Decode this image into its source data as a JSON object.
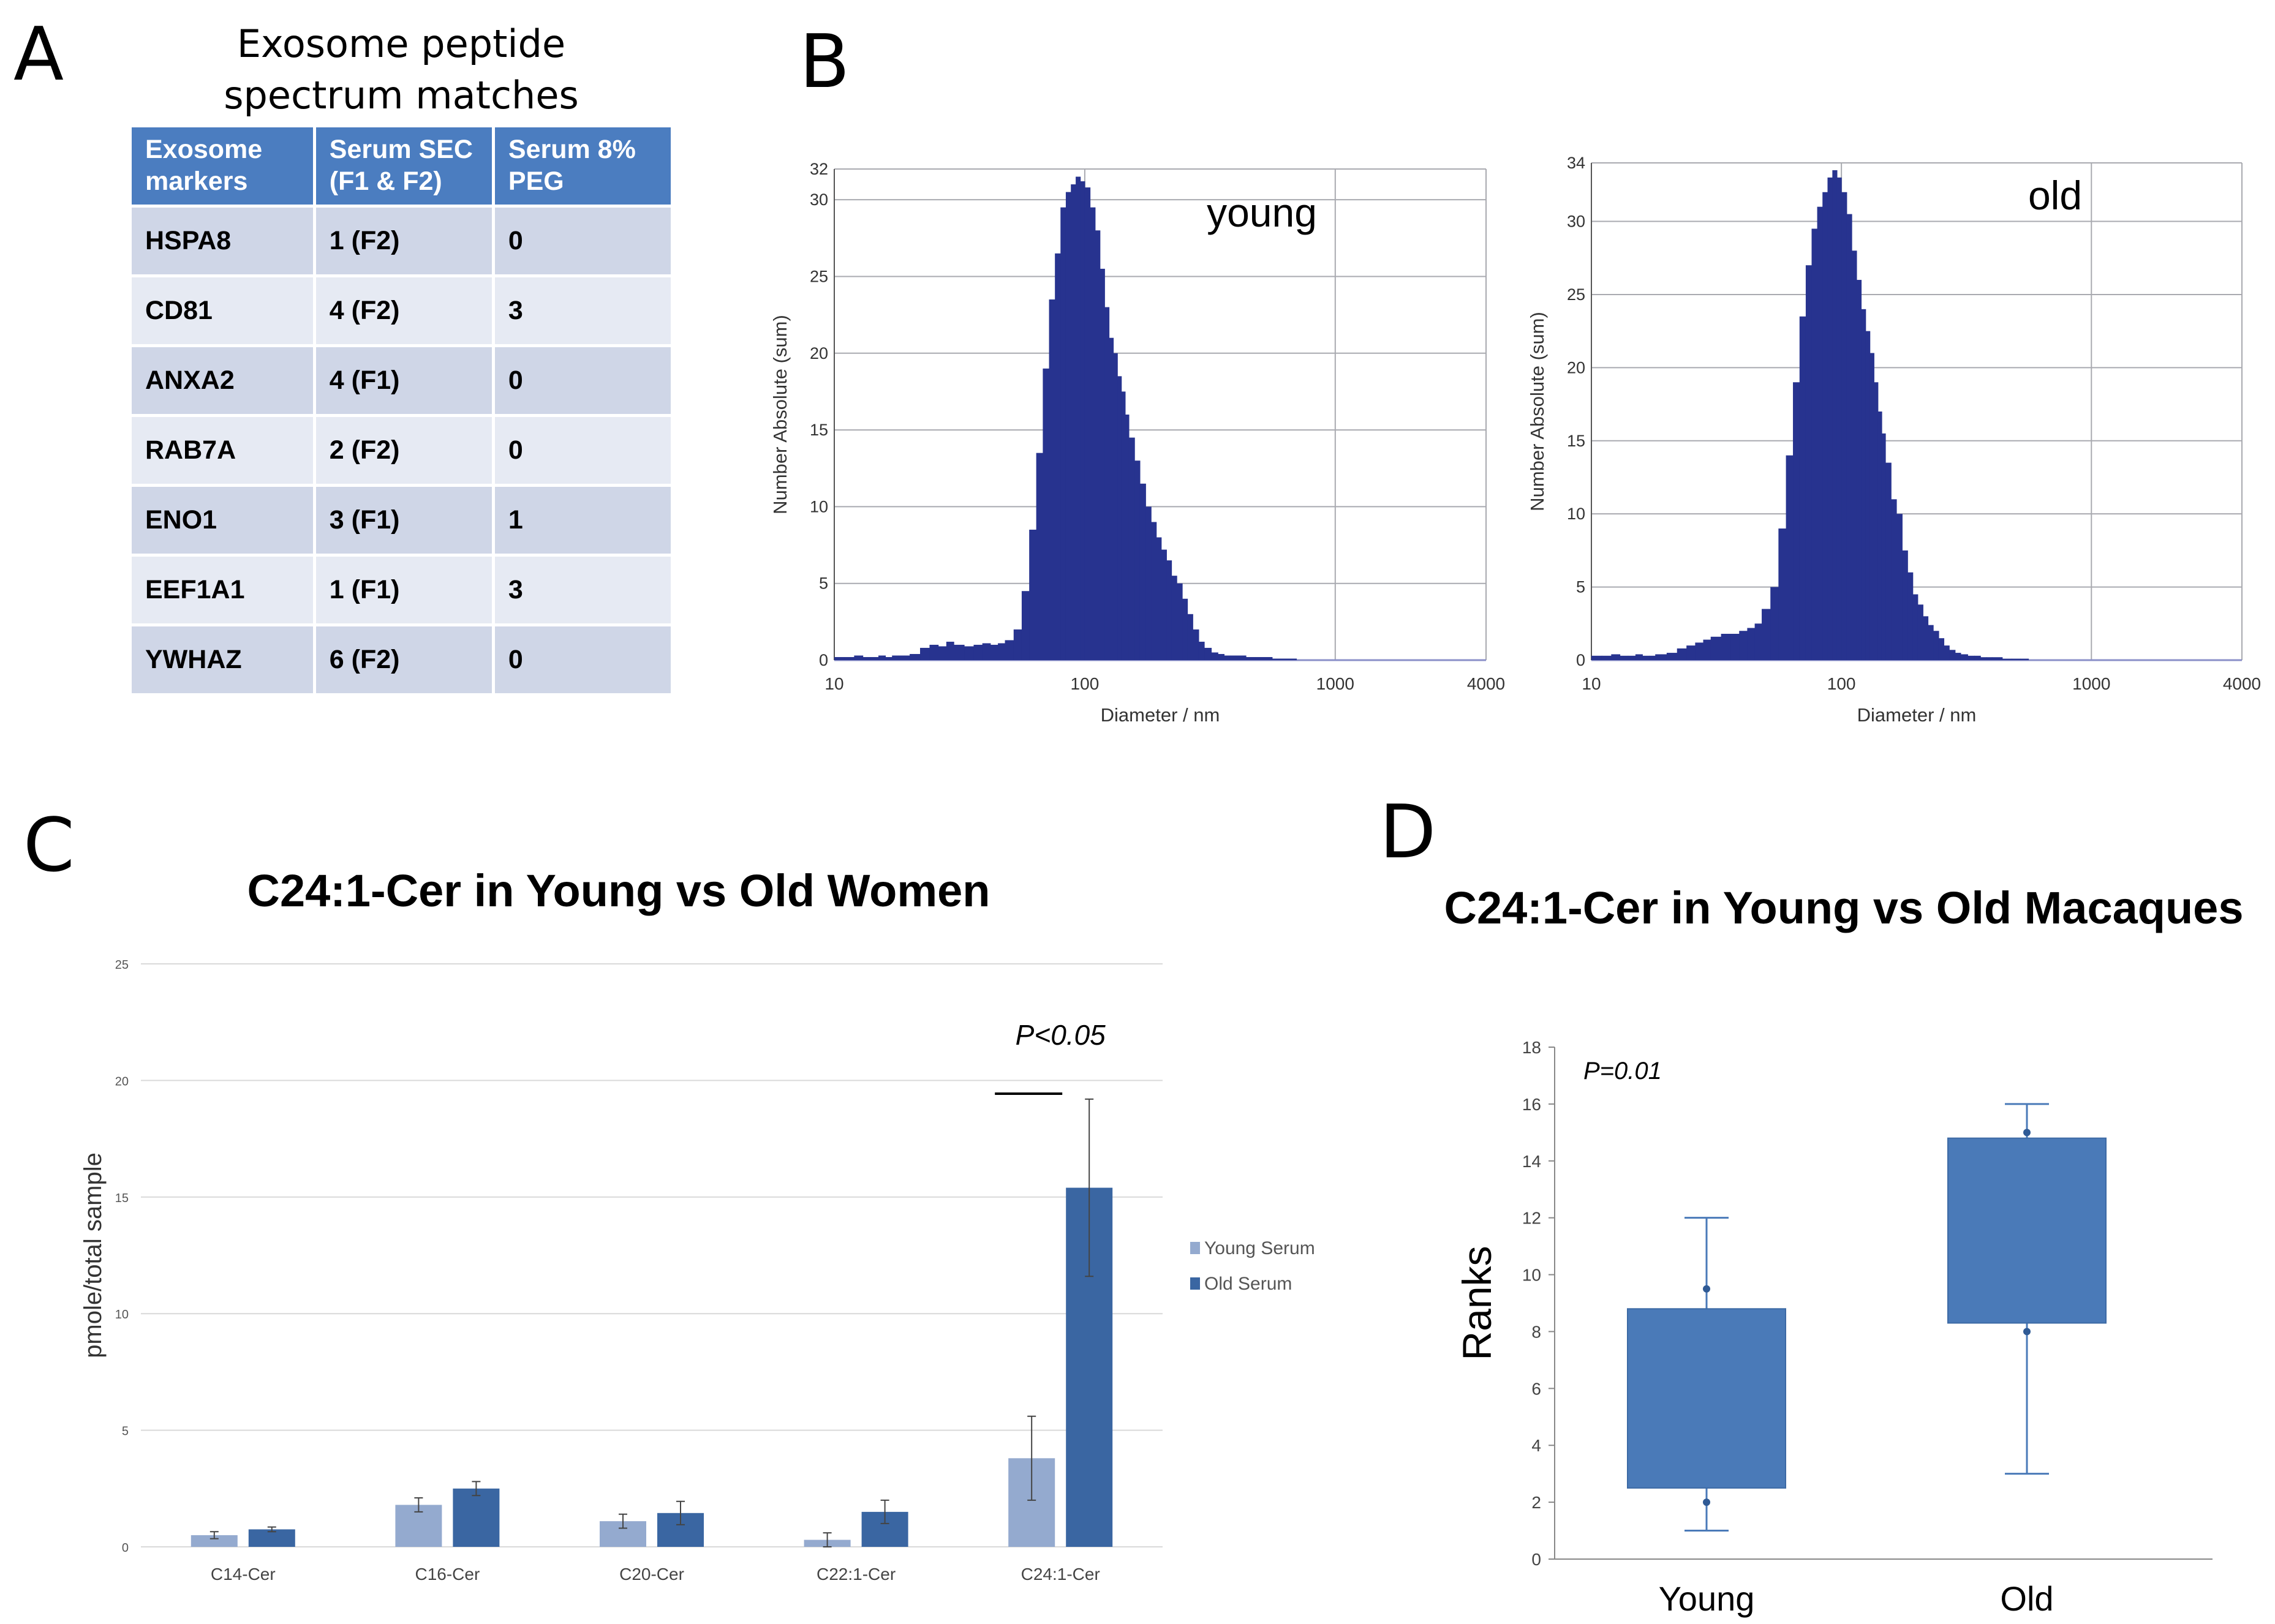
{
  "panels": {
    "a": "A",
    "b": "B",
    "c": "C",
    "d": "D"
  },
  "table": {
    "title_line1": "Exosome peptide",
    "title_line2": "spectrum matches",
    "headers": [
      {
        "line1": "Exosome",
        "line2": "markers"
      },
      {
        "line1": "Serum SEC",
        "line2": "(F1 & F2)"
      },
      {
        "line1": "Serum 8%",
        "line2": "PEG"
      }
    ],
    "rows": [
      {
        "marker": "HSPA8",
        "sec": "1 (F2)",
        "peg": "0"
      },
      {
        "marker": "CD81",
        "sec": "4 (F2)",
        "peg": "3"
      },
      {
        "marker": "ANXA2",
        "sec": "4 (F1)",
        "peg": "0"
      },
      {
        "marker": "RAB7A",
        "sec": "2 (F2)",
        "peg": "0"
      },
      {
        "marker": "ENO1",
        "sec": "3 (F1)",
        "peg": "1"
      },
      {
        "marker": "EEF1A1",
        "sec": "1 (F1)",
        "peg": "3"
      },
      {
        "marker": "YWHAZ",
        "sec": "6 (F2)",
        "peg": "0"
      }
    ]
  },
  "chart_data": [
    {
      "id": "young",
      "type": "bar",
      "title": "young",
      "xlabel": "Diameter / nm",
      "ylabel": "Number Absolute (sum)",
      "xscale": "log",
      "xlim": [
        10,
        4000
      ],
      "ylim": [
        0,
        32
      ],
      "x_ticks": [
        "10",
        "100",
        "1000",
        "4000"
      ],
      "y_ticks": [
        0,
        5,
        10,
        15,
        20,
        25,
        30,
        32
      ],
      "color": "#27338f",
      "x": [
        10,
        11,
        12,
        13,
        14,
        15,
        16,
        17,
        18,
        19,
        20,
        22,
        24,
        26,
        28,
        30,
        33,
        36,
        39,
        42,
        45,
        48,
        52,
        56,
        60,
        64,
        68,
        72,
        76,
        80,
        84,
        88,
        92,
        96,
        100,
        105,
        110,
        115,
        120,
        125,
        130,
        135,
        140,
        145,
        150,
        158,
        166,
        175,
        184,
        193,
        202,
        212,
        222,
        233,
        245,
        257,
        270,
        285,
        300,
        320,
        340,
        360,
        380,
        400,
        440,
        480,
        520,
        560,
        600,
        700
      ],
      "values": [
        0.2,
        0.2,
        0.3,
        0.2,
        0.2,
        0.3,
        0.2,
        0.3,
        0.3,
        0.3,
        0.4,
        0.8,
        1.0,
        0.9,
        1.2,
        1.0,
        0.9,
        1.0,
        1.1,
        1.0,
        1.1,
        1.3,
        2.0,
        4.5,
        8.5,
        13.5,
        19.0,
        23.5,
        26.5,
        29.5,
        30.5,
        31.0,
        31.5,
        31.2,
        30.8,
        29.5,
        28.0,
        25.5,
        23.0,
        21.0,
        20.0,
        18.5,
        17.5,
        16.0,
        14.5,
        13.0,
        11.5,
        10.0,
        9.0,
        8.0,
        7.2,
        6.5,
        5.5,
        5.0,
        4.0,
        3.0,
        2.0,
        1.2,
        0.8,
        0.5,
        0.4,
        0.3,
        0.3,
        0.3,
        0.2,
        0.2,
        0.2,
        0.1,
        0.1,
        0.0
      ]
    },
    {
      "id": "old",
      "type": "bar",
      "title": "old",
      "xlabel": "Diameter / nm",
      "ylabel": "Number Absolute (sum)",
      "xscale": "log",
      "xlim": [
        10,
        4000
      ],
      "ylim": [
        0,
        34
      ],
      "x_ticks": [
        "10",
        "100",
        "1000",
        "4000"
      ],
      "y_ticks": [
        0,
        5,
        10,
        15,
        20,
        25,
        30,
        34
      ],
      "color": "#27338f",
      "x": [
        10,
        11,
        12,
        13,
        14,
        15,
        16,
        17,
        18,
        19,
        20,
        22,
        24,
        26,
        28,
        30,
        33,
        36,
        39,
        42,
        45,
        48,
        52,
        56,
        60,
        64,
        68,
        72,
        76,
        80,
        84,
        88,
        92,
        96,
        100,
        105,
        110,
        115,
        120,
        125,
        130,
        135,
        140,
        145,
        150,
        158,
        166,
        175,
        184,
        193,
        202,
        212,
        222,
        233,
        245,
        257,
        270,
        285,
        300,
        320,
        340,
        360,
        380,
        400,
        440,
        480,
        520,
        560,
        600,
        700
      ],
      "values": [
        0.3,
        0.3,
        0.4,
        0.3,
        0.3,
        0.4,
        0.3,
        0.3,
        0.4,
        0.4,
        0.5,
        0.8,
        1.0,
        1.2,
        1.4,
        1.6,
        1.8,
        1.8,
        2.0,
        2.2,
        2.5,
        3.5,
        5.0,
        9.0,
        14.0,
        19.0,
        23.5,
        27.0,
        29.5,
        31.0,
        32.0,
        33.0,
        33.5,
        33.0,
        32.0,
        30.5,
        28.0,
        26.0,
        24.0,
        22.5,
        21.0,
        19.0,
        17.0,
        15.5,
        13.5,
        11.0,
        10.0,
        7.5,
        6.0,
        4.5,
        3.8,
        3.0,
        2.4,
        2.0,
        1.5,
        1.0,
        0.7,
        0.5,
        0.4,
        0.3,
        0.3,
        0.2,
        0.2,
        0.2,
        0.1,
        0.1,
        0.1,
        0.0,
        0.0,
        0.0
      ]
    },
    {
      "id": "women",
      "type": "bar",
      "title": "C24:1-Cer in Young vs Old Women",
      "xlabel": "",
      "ylabel": "pmole/total sample",
      "ylim": [
        0,
        25
      ],
      "y_ticks": [
        0,
        5,
        10,
        15,
        20,
        25
      ],
      "categories": [
        "C14-Cer",
        "C16-Cer",
        "C20-Cer",
        "C22:1-Cer",
        "C24:1-Cer"
      ],
      "series": [
        {
          "name": "Young Serum",
          "color": "#94aacf",
          "values": [
            0.5,
            1.8,
            1.1,
            0.3,
            3.8
          ],
          "errors": [
            0.15,
            0.3,
            0.3,
            0.3,
            1.8
          ]
        },
        {
          "name": "Old Serum",
          "color": "#3a66a2",
          "values": [
            0.75,
            2.5,
            1.45,
            1.5,
            15.4
          ],
          "errors": [
            0.1,
            0.3,
            0.5,
            0.5,
            3.8
          ]
        }
      ],
      "legend_position": "right",
      "annotation": "P<0.05"
    },
    {
      "id": "macaques",
      "type": "box",
      "title": "C24:1-Cer in Young vs Old Macaques",
      "xlabel": "",
      "ylabel": "Ranks",
      "ylim": [
        0,
        18
      ],
      "y_ticks": [
        0,
        2,
        4,
        6,
        8,
        10,
        12,
        14,
        16,
        18
      ],
      "categories": [
        "Young",
        "Old"
      ],
      "color": "#4a7ab8",
      "boxes": [
        {
          "name": "Young",
          "min": 1,
          "q1": 2.5,
          "q3": 8.8,
          "max": 12,
          "points": [
            9.5,
            2
          ]
        },
        {
          "name": "Old",
          "min": 3,
          "q1": 8.3,
          "q3": 14.8,
          "max": 16,
          "points": [
            15,
            8
          ]
        }
      ],
      "annotation": "P=0.01"
    }
  ]
}
